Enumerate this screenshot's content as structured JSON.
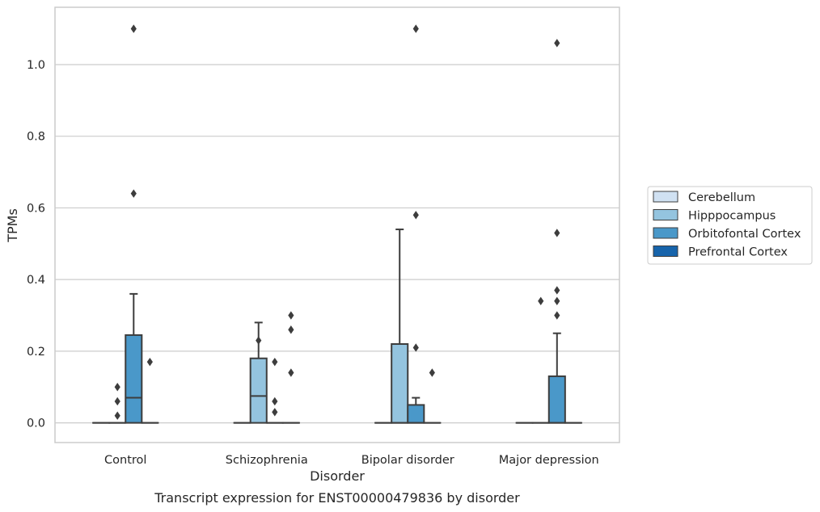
{
  "chart_data": {
    "type": "box",
    "caption": "Transcript expression for ENST00000479836 by disorder",
    "xlabel": "Disorder",
    "ylabel": "TPMs",
    "categories": [
      "Control",
      "Schizophrenia",
      "Bipolar disorder",
      "Major depression"
    ],
    "ylim": [
      -0.055,
      1.16
    ],
    "yticks": [
      0.0,
      0.2,
      0.4,
      0.6,
      0.8,
      1.0
    ],
    "ytick_labels": [
      "0.0",
      "0.2",
      "0.4",
      "0.6",
      "0.8",
      "1.0"
    ],
    "grid": "horizontal",
    "legend_position": "right",
    "series": [
      {
        "name": "Cerebellum",
        "color": "#d0e1f2",
        "boxes": [
          {
            "min": 0,
            "q1": 0,
            "median": 0,
            "q3": 0,
            "max": 0,
            "outliers": []
          },
          {
            "min": 0,
            "q1": 0,
            "median": 0,
            "q3": 0,
            "max": 0,
            "outliers": []
          },
          {
            "min": 0,
            "q1": 0,
            "median": 0,
            "q3": 0,
            "max": 0,
            "outliers": []
          },
          {
            "min": 0,
            "q1": 0,
            "median": 0,
            "q3": 0,
            "max": 0,
            "outliers": []
          }
        ]
      },
      {
        "name": "Hipppocampus",
        "color": "#94c4df",
        "boxes": [
          {
            "min": 0,
            "q1": 0,
            "median": 0,
            "q3": 0,
            "max": 0,
            "outliers": [
              0.02,
              0.06,
              0.1
            ]
          },
          {
            "min": 0,
            "q1": 0,
            "median": 0.075,
            "q3": 0.18,
            "max": 0.28,
            "outliers": [
              0.23
            ]
          },
          {
            "min": 0,
            "q1": 0,
            "median": 0,
            "q3": 0.22,
            "max": 0.54,
            "outliers": []
          },
          {
            "min": 0,
            "q1": 0,
            "median": 0,
            "q3": 0,
            "max": 0,
            "outliers": [
              0.34
            ]
          }
        ]
      },
      {
        "name": "Orbitofontal Cortex",
        "color": "#4a98c9",
        "boxes": [
          {
            "min": 0,
            "q1": 0,
            "median": 0.07,
            "q3": 0.245,
            "max": 0.36,
            "outliers": [
              0.64,
              1.1
            ]
          },
          {
            "min": 0,
            "q1": 0,
            "median": 0,
            "q3": 0,
            "max": 0,
            "outliers": [
              0.03,
              0.06,
              0.17
            ]
          },
          {
            "min": 0,
            "q1": 0,
            "median": 0,
            "q3": 0.05,
            "max": 0.07,
            "outliers": [
              0.21,
              0.58,
              1.1
            ]
          },
          {
            "min": 0,
            "q1": 0,
            "median": 0,
            "q3": 0.13,
            "max": 0.25,
            "outliers": [
              0.3,
              0.34,
              0.37,
              0.53,
              1.06
            ]
          }
        ]
      },
      {
        "name": "Prefrontal Cortex",
        "color": "#1764ab",
        "boxes": [
          {
            "min": 0,
            "q1": 0,
            "median": 0,
            "q3": 0,
            "max": 0,
            "outliers": [
              0.17
            ]
          },
          {
            "min": 0,
            "q1": 0,
            "median": 0,
            "q3": 0,
            "max": 0,
            "outliers": [
              0.14,
              0.26,
              0.3
            ]
          },
          {
            "min": 0,
            "q1": 0,
            "median": 0,
            "q3": 0,
            "max": 0,
            "outliers": [
              0.14
            ]
          },
          {
            "min": 0,
            "q1": 0,
            "median": 0,
            "q3": 0,
            "max": 0,
            "outliers": []
          }
        ]
      }
    ]
  }
}
